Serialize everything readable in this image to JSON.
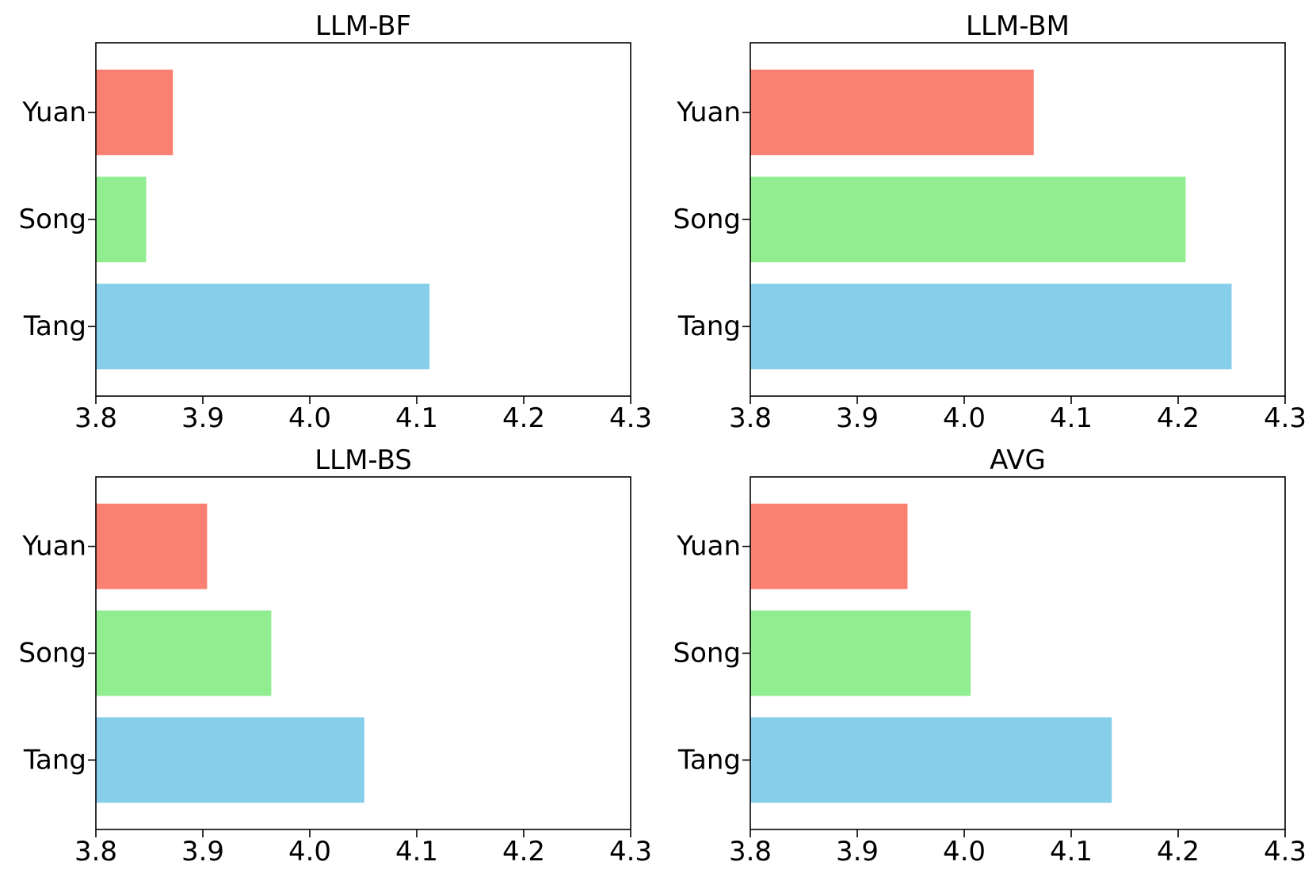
{
  "colors": {
    "Yuan": "#fa8072",
    "Song": "#90ee90",
    "Tang": "#87ceeb"
  },
  "chart_data": [
    {
      "type": "bar",
      "orientation": "horizontal",
      "title": "LLM-BF",
      "categories": [
        "Tang",
        "Song",
        "Yuan"
      ],
      "values": [
        4.112,
        3.847,
        3.872
      ],
      "xlim": [
        3.8,
        4.3
      ],
      "xticks": [
        "3.8",
        "3.9",
        "4.0",
        "4.1",
        "4.2",
        "4.3"
      ],
      "xlabel": "",
      "ylabel": "",
      "grid": false
    },
    {
      "type": "bar",
      "orientation": "horizontal",
      "title": "LLM-BM",
      "categories": [
        "Tang",
        "Song",
        "Yuan"
      ],
      "values": [
        4.25,
        4.207,
        4.065
      ],
      "xlim": [
        3.8,
        4.3
      ],
      "xticks": [
        "3.8",
        "3.9",
        "4.0",
        "4.1",
        "4.2",
        "4.3"
      ],
      "xlabel": "",
      "ylabel": "",
      "grid": false
    },
    {
      "type": "bar",
      "orientation": "horizontal",
      "title": "LLM-BS",
      "categories": [
        "Tang",
        "Song",
        "Yuan"
      ],
      "values": [
        4.051,
        3.964,
        3.904
      ],
      "xlim": [
        3.8,
        4.3
      ],
      "xticks": [
        "3.8",
        "3.9",
        "4.0",
        "4.1",
        "4.2",
        "4.3"
      ],
      "xlabel": "",
      "ylabel": "",
      "grid": false
    },
    {
      "type": "bar",
      "orientation": "horizontal",
      "title": "AVG",
      "categories": [
        "Tang",
        "Song",
        "Yuan"
      ],
      "values": [
        4.138,
        4.006,
        3.947
      ],
      "xlim": [
        3.8,
        4.3
      ],
      "xticks": [
        "3.8",
        "3.9",
        "4.0",
        "4.1",
        "4.2",
        "4.3"
      ],
      "xlabel": "",
      "ylabel": "",
      "grid": false
    }
  ]
}
